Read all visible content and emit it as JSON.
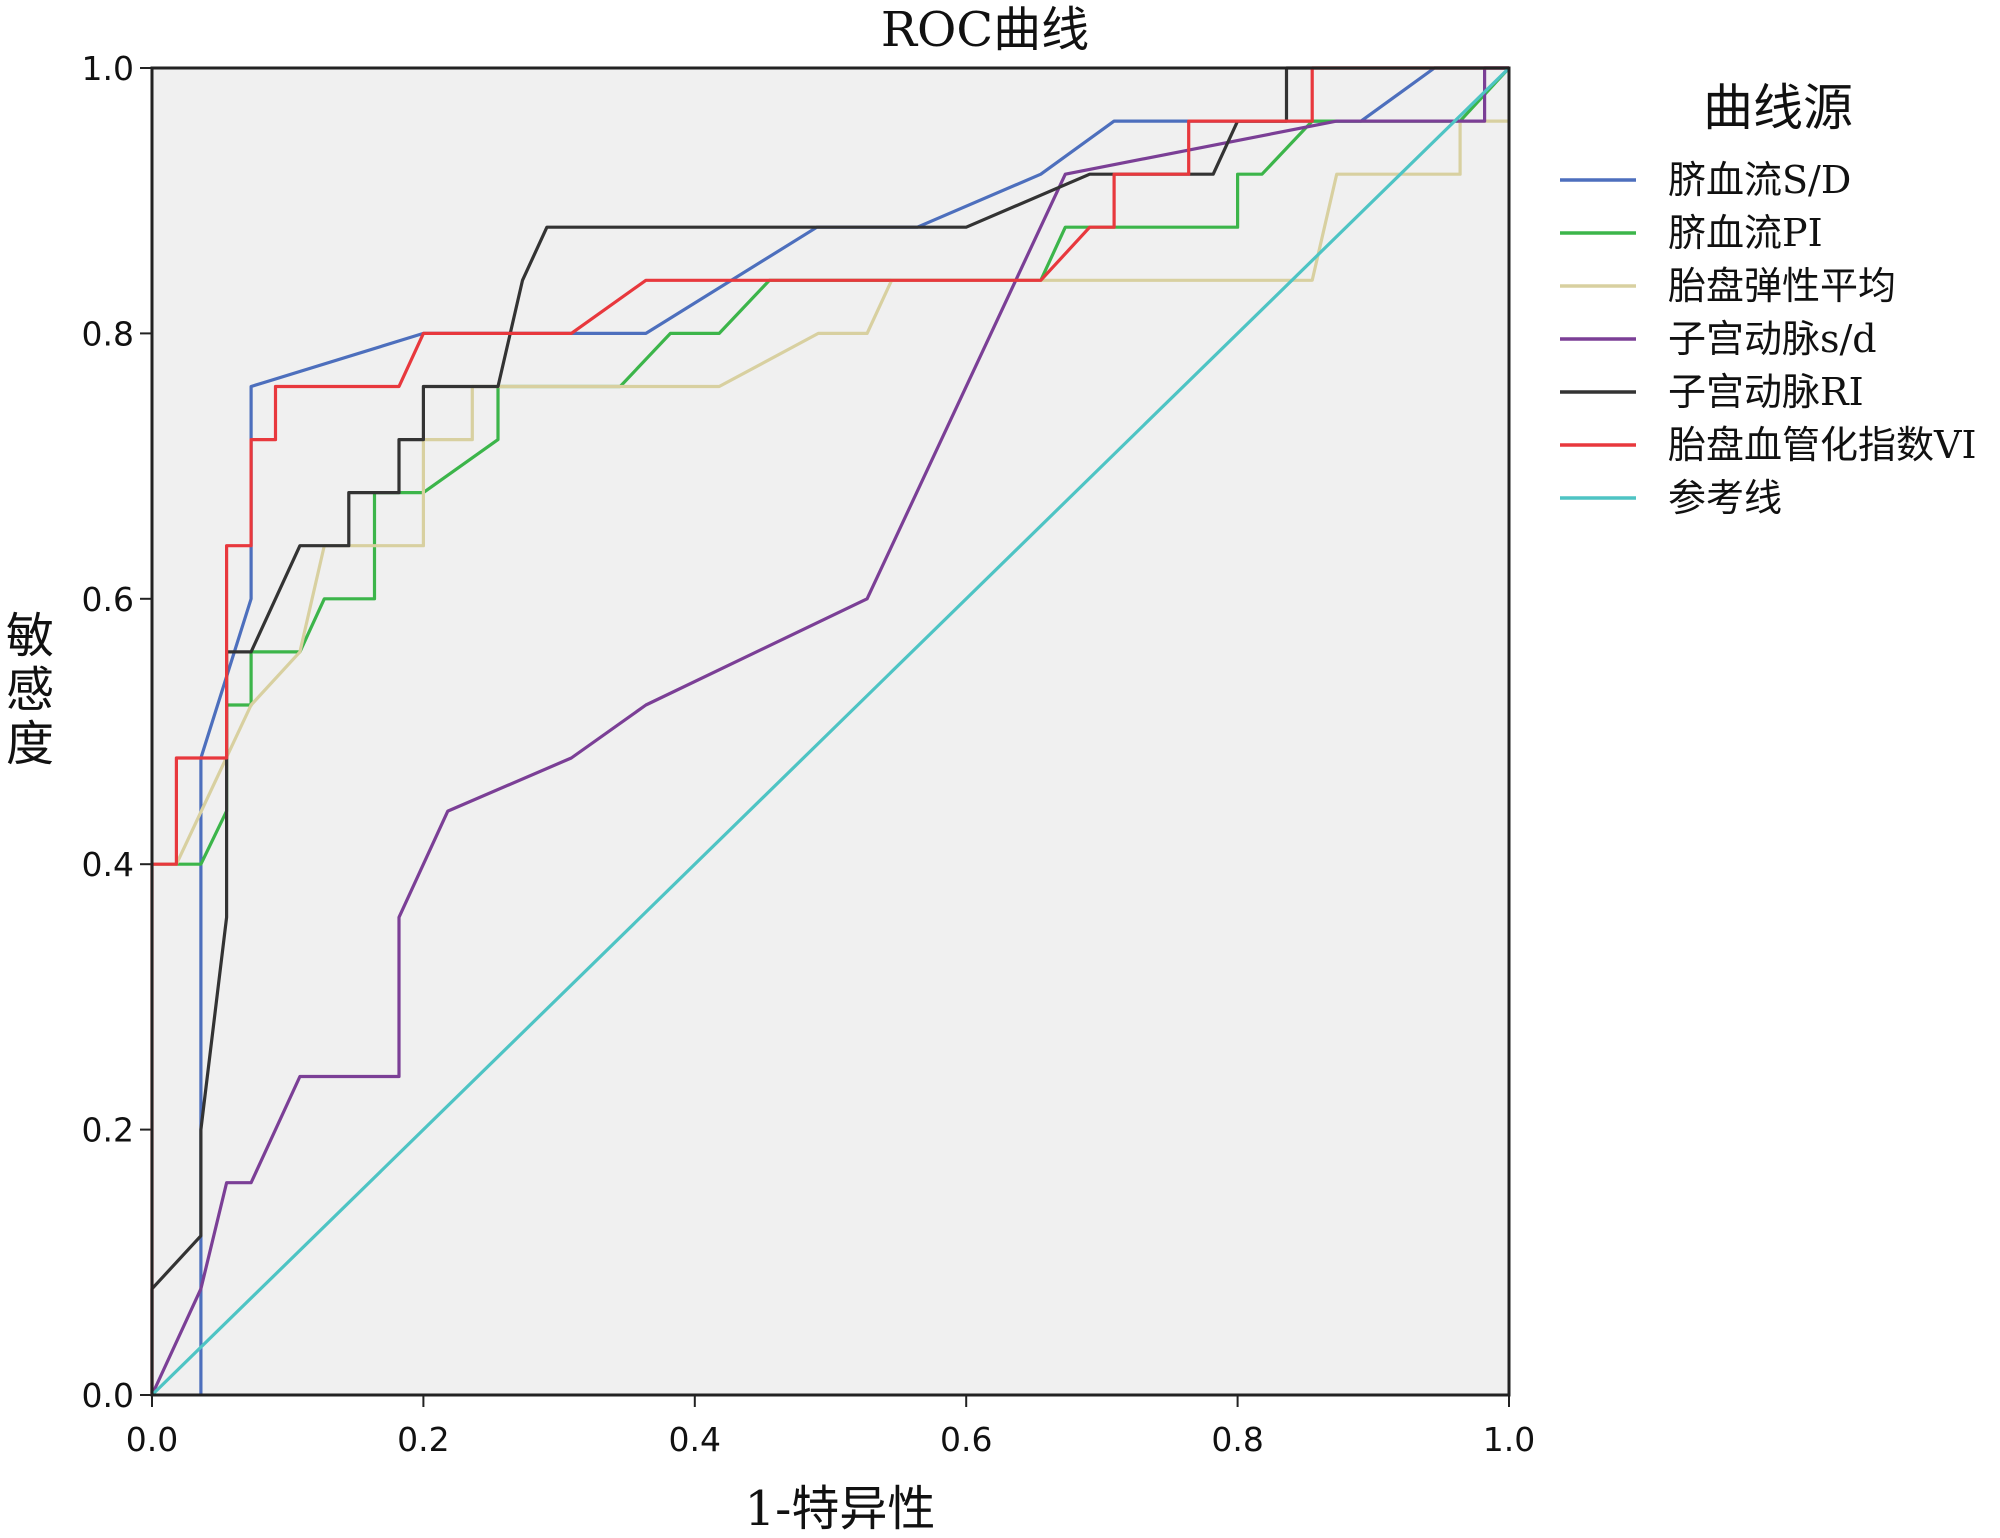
{
  "chart_data": {
    "type": "line",
    "title": "ROC曲线",
    "xlabel": "1-特异性",
    "ylabel": "敏感度",
    "xlim": [
      0,
      1
    ],
    "ylim": [
      0,
      1
    ],
    "xticks": [
      "0.0",
      "0.2",
      "0.4",
      "0.6",
      "0.8",
      "1.0"
    ],
    "yticks": [
      "0.0",
      "0.2",
      "0.4",
      "0.6",
      "0.8",
      "1.0"
    ],
    "xtick_values": [
      0,
      0.2,
      0.4,
      0.6,
      0.8,
      1.0
    ],
    "ytick_values": [
      0,
      0.2,
      0.4,
      0.6,
      0.8,
      1.0
    ],
    "plot_background": "#f0f0f0",
    "grid": false,
    "legend_title": "曲线源",
    "legend_position": "right",
    "series": [
      {
        "name": "脐血流S/D",
        "color": "#4d6fbd",
        "points": [
          [
            0.036,
            0
          ],
          [
            0.036,
            0.48
          ],
          [
            0.073,
            0.6
          ],
          [
            0.073,
            0.76
          ],
          [
            0.2,
            0.8
          ],
          [
            0.364,
            0.8
          ],
          [
            0.49,
            0.88
          ],
          [
            0.564,
            0.88
          ],
          [
            0.655,
            0.92
          ],
          [
            0.709,
            0.96
          ],
          [
            0.855,
            0.96
          ],
          [
            0.891,
            0.96
          ],
          [
            0.945,
            1.0
          ],
          [
            1.0,
            1.0
          ]
        ]
      },
      {
        "name": "脐血流PI",
        "color": "#3cb54a",
        "points": [
          [
            0,
            0.4
          ],
          [
            0.036,
            0.4
          ],
          [
            0.055,
            0.44
          ],
          [
            0.055,
            0.52
          ],
          [
            0.073,
            0.52
          ],
          [
            0.073,
            0.56
          ],
          [
            0.109,
            0.56
          ],
          [
            0.127,
            0.6
          ],
          [
            0.164,
            0.6
          ],
          [
            0.164,
            0.68
          ],
          [
            0.2,
            0.68
          ],
          [
            0.255,
            0.72
          ],
          [
            0.255,
            0.76
          ],
          [
            0.345,
            0.76
          ],
          [
            0.382,
            0.8
          ],
          [
            0.418,
            0.8
          ],
          [
            0.455,
            0.84
          ],
          [
            0.655,
            0.84
          ],
          [
            0.673,
            0.88
          ],
          [
            0.8,
            0.88
          ],
          [
            0.8,
            0.92
          ],
          [
            0.818,
            0.92
          ],
          [
            0.855,
            0.96
          ],
          [
            0.873,
            0.96
          ],
          [
            0.964,
            0.96
          ],
          [
            1.0,
            1.0
          ]
        ]
      },
      {
        "name": "胎盘弹性平均",
        "color": "#d8d0a0",
        "points": [
          [
            0,
            0.4
          ],
          [
            0.018,
            0.4
          ],
          [
            0.073,
            0.52
          ],
          [
            0.109,
            0.56
          ],
          [
            0.127,
            0.64
          ],
          [
            0.2,
            0.64
          ],
          [
            0.2,
            0.72
          ],
          [
            0.236,
            0.72
          ],
          [
            0.236,
            0.76
          ],
          [
            0.418,
            0.76
          ],
          [
            0.491,
            0.8
          ],
          [
            0.527,
            0.8
          ],
          [
            0.545,
            0.84
          ],
          [
            0.818,
            0.84
          ],
          [
            0.855,
            0.84
          ],
          [
            0.873,
            0.92
          ],
          [
            0.964,
            0.92
          ],
          [
            0.964,
            0.96
          ],
          [
            1.0,
            0.96
          ]
        ]
      },
      {
        "name": "子宫动脉s/d",
        "color": "#7b3f96",
        "points": [
          [
            0,
            0
          ],
          [
            0.036,
            0.08
          ],
          [
            0.055,
            0.16
          ],
          [
            0.073,
            0.16
          ],
          [
            0.109,
            0.24
          ],
          [
            0.182,
            0.24
          ],
          [
            0.182,
            0.36
          ],
          [
            0.218,
            0.44
          ],
          [
            0.309,
            0.48
          ],
          [
            0.364,
            0.52
          ],
          [
            0.527,
            0.6
          ],
          [
            0.673,
            0.92
          ],
          [
            0.873,
            0.96
          ],
          [
            0.982,
            0.96
          ],
          [
            0.982,
            1.0
          ],
          [
            1.0,
            1.0
          ]
        ]
      },
      {
        "name": "子宫动脉RI",
        "color": "#333333",
        "points": [
          [
            0,
            0
          ],
          [
            0,
            0.08
          ],
          [
            0.036,
            0.12
          ],
          [
            0.036,
            0.2
          ],
          [
            0.055,
            0.36
          ],
          [
            0.055,
            0.56
          ],
          [
            0.073,
            0.56
          ],
          [
            0.109,
            0.64
          ],
          [
            0.145,
            0.64
          ],
          [
            0.145,
            0.68
          ],
          [
            0.182,
            0.68
          ],
          [
            0.182,
            0.72
          ],
          [
            0.2,
            0.72
          ],
          [
            0.2,
            0.76
          ],
          [
            0.255,
            0.76
          ],
          [
            0.273,
            0.84
          ],
          [
            0.291,
            0.88
          ],
          [
            0.6,
            0.88
          ],
          [
            0.691,
            0.92
          ],
          [
            0.782,
            0.92
          ],
          [
            0.8,
            0.96
          ],
          [
            0.836,
            0.96
          ],
          [
            0.836,
            1.0
          ],
          [
            1.0,
            1.0
          ]
        ]
      },
      {
        "name": "胎盘血管化指数VI",
        "color": "#e8383d",
        "points": [
          [
            0,
            0
          ],
          [
            0,
            0.4
          ],
          [
            0.018,
            0.4
          ],
          [
            0.018,
            0.48
          ],
          [
            0.055,
            0.48
          ],
          [
            0.055,
            0.64
          ],
          [
            0.073,
            0.64
          ],
          [
            0.073,
            0.72
          ],
          [
            0.091,
            0.72
          ],
          [
            0.091,
            0.76
          ],
          [
            0.182,
            0.76
          ],
          [
            0.2,
            0.8
          ],
          [
            0.309,
            0.8
          ],
          [
            0.364,
            0.84
          ],
          [
            0.655,
            0.84
          ],
          [
            0.691,
            0.88
          ],
          [
            0.709,
            0.88
          ],
          [
            0.709,
            0.92
          ],
          [
            0.764,
            0.92
          ],
          [
            0.764,
            0.96
          ],
          [
            0.855,
            0.96
          ],
          [
            0.855,
            1.0
          ],
          [
            1.0,
            1.0
          ]
        ]
      },
      {
        "name": "参考线",
        "color": "#4ec4c4",
        "points": [
          [
            0,
            0
          ],
          [
            1,
            1
          ]
        ]
      }
    ]
  }
}
